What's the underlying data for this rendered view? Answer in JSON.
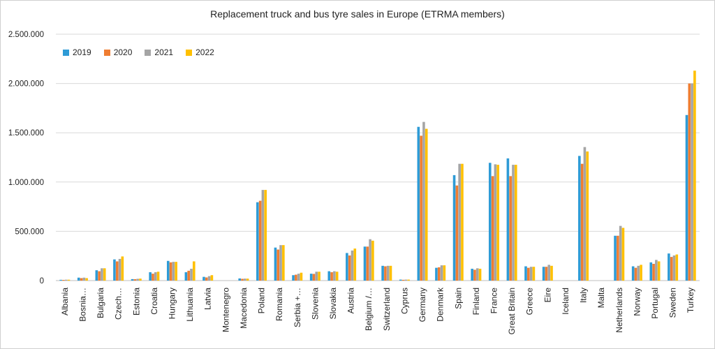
{
  "chart_data": {
    "type": "bar",
    "title": "Replacement truck and bus tyre sales in Europe (ETRMA members)",
    "xlabel": "",
    "ylabel": "",
    "ylim": [
      0,
      2500000
    ],
    "yticks": [
      0,
      500000,
      1000000,
      1500000,
      2000000,
      2500000
    ],
    "ytick_labels": [
      "0",
      "500.000",
      "1.000.000",
      "1.500.000",
      "2.000.000",
      "2.500.000"
    ],
    "grid": true,
    "legend_position": "top-left",
    "categories": [
      "Albania",
      "Bosnia…",
      "Bulgaria",
      "Czech…",
      "Estonia",
      "Croatia",
      "Hungary",
      "Lithuania",
      "Latvia",
      "Montenegro",
      "Macedonia",
      "Poland",
      "Romania",
      "Serbia +…",
      "Slovenia",
      "Slovakia",
      "Austria",
      "Belgium /…",
      "Switzerland",
      "Cyprus",
      "Germany",
      "Denmark",
      "Spain",
      "Finland",
      "France",
      "Great Britain",
      "Greece",
      "Eire",
      "Iceland",
      "Italy",
      "Malta",
      "Netherlands",
      "Norway",
      "Portugal",
      "Sweden",
      "Turkey"
    ],
    "series": [
      {
        "name": "2019",
        "color": "#2e9bd6",
        "values": [
          8000,
          30000,
          105000,
          215000,
          15000,
          85000,
          200000,
          85000,
          38000,
          0,
          22000,
          795000,
          335000,
          55000,
          70000,
          95000,
          280000,
          345000,
          150000,
          10000,
          1560000,
          130000,
          1070000,
          120000,
          1195000,
          1240000,
          145000,
          140000,
          0,
          1265000,
          0,
          455000,
          145000,
          185000,
          275000,
          1680000
        ]
      },
      {
        "name": "2020",
        "color": "#ef7d31",
        "values": [
          7000,
          25000,
          95000,
          195000,
          14000,
          70000,
          185000,
          100000,
          32000,
          0,
          18000,
          810000,
          315000,
          60000,
          68000,
          85000,
          255000,
          345000,
          145000,
          8000,
          1470000,
          135000,
          965000,
          110000,
          1060000,
          1060000,
          130000,
          140000,
          0,
          1185000,
          0,
          455000,
          130000,
          170000,
          240000,
          2000000
        ]
      },
      {
        "name": "2021",
        "color": "#a5a5a5",
        "values": [
          9000,
          30000,
          125000,
          220000,
          18000,
          85000,
          190000,
          120000,
          45000,
          0,
          20000,
          920000,
          360000,
          70000,
          90000,
          95000,
          305000,
          420000,
          150000,
          10000,
          1610000,
          155000,
          1185000,
          125000,
          1180000,
          1175000,
          140000,
          160000,
          0,
          1355000,
          0,
          555000,
          150000,
          210000,
          255000,
          2000000
        ]
      },
      {
        "name": "2022",
        "color": "#ffc000",
        "values": [
          9000,
          25000,
          125000,
          245000,
          20000,
          90000,
          190000,
          195000,
          55000,
          0,
          20000,
          920000,
          360000,
          80000,
          90000,
          90000,
          325000,
          405000,
          150000,
          10000,
          1540000,
          155000,
          1185000,
          120000,
          1175000,
          1175000,
          140000,
          150000,
          0,
          1310000,
          0,
          535000,
          160000,
          195000,
          265000,
          2130000
        ]
      }
    ]
  }
}
